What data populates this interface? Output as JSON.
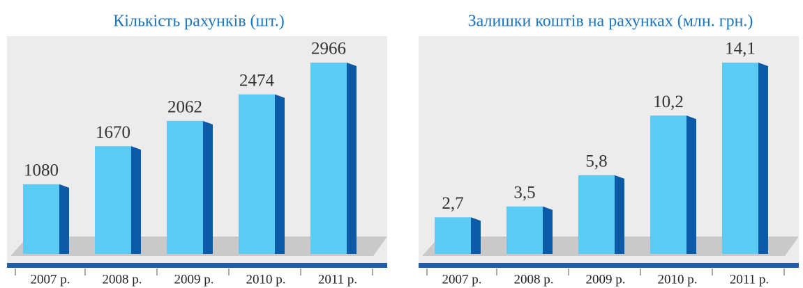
{
  "chart_data": [
    {
      "type": "bar",
      "title": "Кількість рахунків (шт.)",
      "categories": [
        "2007 р.",
        "2008 р.",
        "2009 р.",
        "2010 р.",
        "2011 р."
      ],
      "values": [
        1080,
        1670,
        2062,
        2474,
        2966
      ],
      "color": "#5ccbf3"
    },
    {
      "type": "bar",
      "title": "Залишки коштів на рахунках (млн. грн.)",
      "categories": [
        "2007 р.",
        "2008 р.",
        "2009 р.",
        "2010 р.",
        "2011 р."
      ],
      "values": [
        2.7,
        3.5,
        5.8,
        10.2,
        14.1
      ],
      "value_labels": [
        "2,7",
        "3,5",
        "5,8",
        "10,2",
        "14,1"
      ],
      "color": "#5ccbf3"
    }
  ]
}
